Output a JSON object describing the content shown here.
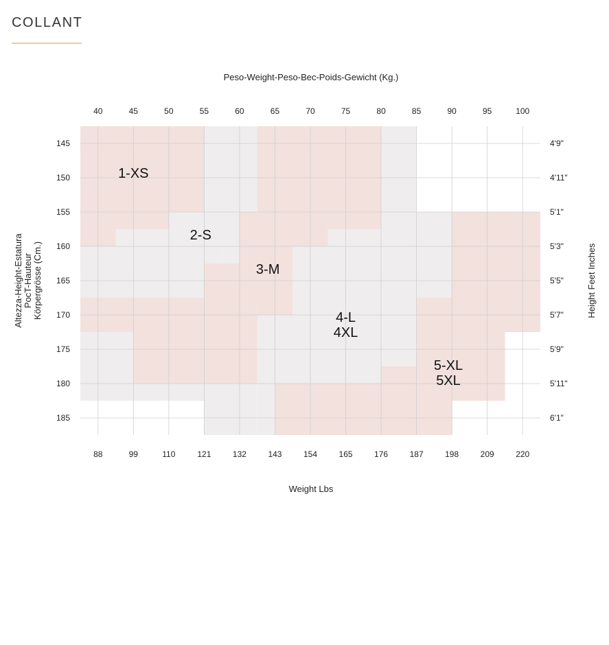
{
  "page": {
    "heading": "COLLANT",
    "accent_color": "#e4cf9e"
  },
  "chart_data": {
    "type": "heatmap",
    "title": "Peso-Weight-Peso-Bec-Poids-Gewicht (Kg.)",
    "xlabel": "Weight Lbs",
    "ylabel_left": [
      "Altezza-Height-Estatura",
      "PocT-Hauteur",
      "Körpergrösse (Cm.)"
    ],
    "ylabel_right": "Height Feet Inches",
    "x_kg": [
      40,
      45,
      50,
      55,
      60,
      65,
      70,
      75,
      80,
      85,
      90,
      95,
      100
    ],
    "x_lbs": [
      "88",
      "99",
      "110",
      "121",
      "132",
      "143",
      "154",
      "165",
      "176",
      "187",
      "198",
      "209",
      "220"
    ],
    "y_cm": [
      145,
      150,
      155,
      160,
      165,
      170,
      175,
      180,
      185
    ],
    "y_feet": [
      "4'9\"",
      "4'11\"",
      "5'1\"",
      "5'3\"",
      "5'5\"",
      "5'7\"",
      "5'9\"",
      "5'11\"",
      "6'1\""
    ],
    "xlim_kg": [
      37.5,
      102.5
    ],
    "ylim_cm": [
      142.5,
      187.5
    ],
    "grid": true,
    "colors": {
      "pink": "#f2e1dd",
      "gray": "#efeded",
      "grid": "#cfcfcf"
    },
    "sizes": [
      {
        "label": "1-XS",
        "color": "pink",
        "zones": [
          [
            37.5,
            142.5,
            55,
            155
          ],
          [
            37.5,
            155,
            42.5,
            157.5
          ],
          [
            37.5,
            157.5,
            50,
            157.5
          ]
        ],
        "label_at": [
          45,
          150
        ]
      },
      {
        "label": "2-S",
        "color": "gray",
        "zones": [],
        "label_at": [
          54.5,
          159
        ]
      },
      {
        "label": "3-M",
        "color": "pink",
        "zones": [],
        "label_at": [
          64,
          164
        ]
      },
      {
        "label": "4-L\n4XL",
        "color": "gray",
        "zones": [],
        "label_at": [
          75,
          171
        ]
      },
      {
        "label": "5-XL\n5XL",
        "color": "pink",
        "zones": [],
        "label_at": [
          89.5,
          178
        ]
      }
    ],
    "cells": [
      [
        37.5,
        142.5,
        55,
        155,
        "pink"
      ],
      [
        55,
        142.5,
        62.5,
        155,
        "gray"
      ],
      [
        62.5,
        142.5,
        80,
        155,
        "pink"
      ],
      [
        80,
        142.5,
        85,
        155,
        "gray"
      ],
      [
        37.5,
        155,
        42.5,
        160,
        "pink"
      ],
      [
        42.5,
        155,
        50,
        157.5,
        "pink"
      ],
      [
        42.5,
        157.5,
        50,
        160,
        "gray"
      ],
      [
        50,
        155,
        60,
        157.5,
        "gray"
      ],
      [
        60,
        155,
        72.5,
        160,
        "pink"
      ],
      [
        72.5,
        155,
        80,
        157.5,
        "pink"
      ],
      [
        72.5,
        157.5,
        80,
        160,
        "gray"
      ],
      [
        80,
        155,
        90,
        160,
        "gray"
      ],
      [
        90,
        155,
        102.5,
        170,
        "pink"
      ],
      [
        37.5,
        160,
        55,
        167.5,
        "gray"
      ],
      [
        50,
        157.5,
        60,
        160,
        "gray"
      ],
      [
        55,
        160,
        57.5,
        162.5,
        "gray"
      ],
      [
        57.5,
        160,
        60,
        162.5,
        "gray"
      ],
      [
        55,
        162.5,
        60,
        167.5,
        "pink"
      ],
      [
        60,
        160,
        67.5,
        167.5,
        "pink"
      ],
      [
        67.5,
        160,
        90,
        167.5,
        "gray"
      ],
      [
        37.5,
        167.5,
        55,
        170,
        "pink"
      ],
      [
        55,
        167.5,
        62.5,
        170,
        "pink"
      ],
      [
        62.5,
        167.5,
        67.5,
        170,
        "pink"
      ],
      [
        67.5,
        167.5,
        85,
        170,
        "gray"
      ],
      [
        85,
        167.5,
        90,
        170,
        "pink"
      ],
      [
        37.5,
        170,
        45,
        172.5,
        "pink"
      ],
      [
        45,
        170,
        62.5,
        172.5,
        "pink"
      ],
      [
        62.5,
        170,
        85,
        172.5,
        "gray"
      ],
      [
        85,
        170,
        102.5,
        172.5,
        "pink"
      ],
      [
        37.5,
        172.5,
        45,
        182.5,
        "gray"
      ],
      [
        45,
        172.5,
        62.5,
        180,
        "pink"
      ],
      [
        62.5,
        172.5,
        82.5,
        177.5,
        "gray"
      ],
      [
        82.5,
        172.5,
        85,
        177.5,
        "gray"
      ],
      [
        85,
        172.5,
        97.5,
        177.5,
        "pink"
      ],
      [
        45,
        180,
        55,
        182.5,
        "gray"
      ],
      [
        55,
        180,
        62.5,
        187.5,
        "gray"
      ],
      [
        62.5,
        177.5,
        67.5,
        180,
        "gray"
      ],
      [
        67.5,
        177.5,
        80,
        180,
        "gray"
      ],
      [
        80,
        177.5,
        97.5,
        180,
        "pink"
      ],
      [
        62.5,
        180,
        65,
        187.5,
        "gray"
      ],
      [
        65,
        180,
        90,
        187.5,
        "pink"
      ],
      [
        90,
        180,
        97.5,
        182.5,
        "pink"
      ]
    ]
  }
}
